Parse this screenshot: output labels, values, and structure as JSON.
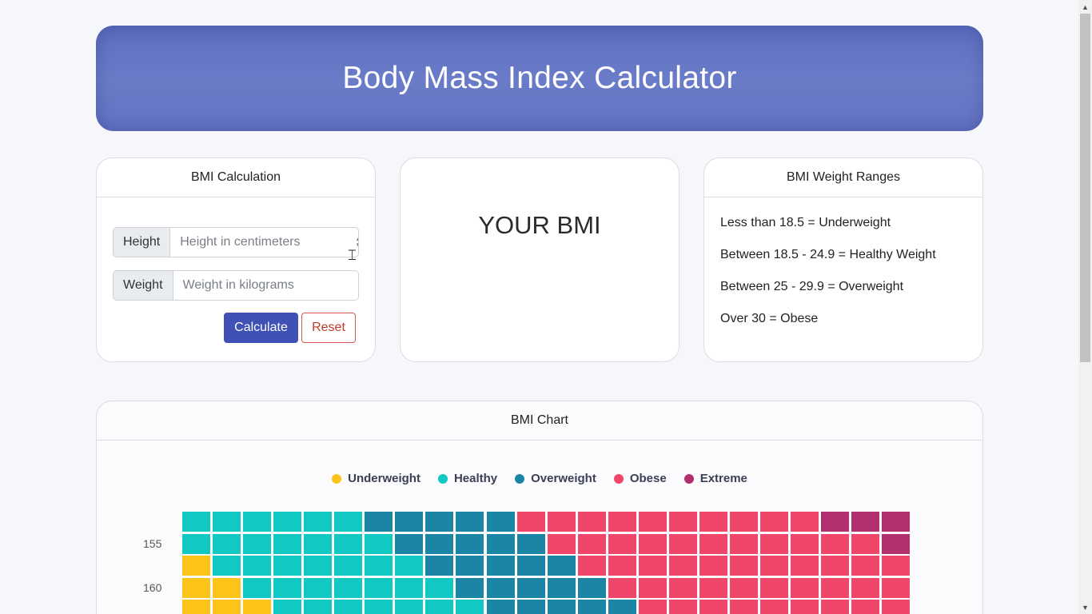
{
  "header": {
    "title": "Body Mass Index Calculator"
  },
  "calculation": {
    "title": "BMI Calculation",
    "height_label": "Height",
    "height_placeholder": "Height in centimeters",
    "height_value": "",
    "weight_label": "Weight",
    "weight_placeholder": "Weight in kilograms",
    "weight_value": "",
    "calculate_label": "Calculate",
    "reset_label": "Reset"
  },
  "result": {
    "title": "YOUR BMI"
  },
  "ranges": {
    "title": "BMI Weight Ranges",
    "items": [
      "Less than 18.5 = Underweight",
      "Between 18.5 - 24.9 = Healthy Weight",
      "Between 25 - 29.9 = Overweight",
      "Over 30 = Obese"
    ]
  },
  "chart_section": {
    "title": "BMI Chart"
  },
  "chart_data": {
    "type": "heatmap",
    "legend": [
      {
        "name": "Underweight",
        "color": "#fcc419"
      },
      {
        "name": "Healthy",
        "color": "#12c8c3"
      },
      {
        "name": "Overweight",
        "color": "#1b85a6"
      },
      {
        "name": "Obese",
        "color": "#f0466a"
      },
      {
        "name": "Extreme",
        "color": "#b3306e"
      }
    ],
    "y_ticks": [
      {
        "label": "155",
        "row": 1
      },
      {
        "label": "160",
        "row": 3
      }
    ],
    "columns": 24,
    "rows": [
      [
        "Healthy",
        "Healthy",
        "Healthy",
        "Healthy",
        "Healthy",
        "Healthy",
        "Overweight",
        "Overweight",
        "Overweight",
        "Overweight",
        "Overweight",
        "Obese",
        "Obese",
        "Obese",
        "Obese",
        "Obese",
        "Obese",
        "Obese",
        "Obese",
        "Obese",
        "Obese",
        "Extreme",
        "Extreme",
        "Extreme"
      ],
      [
        "Healthy",
        "Healthy",
        "Healthy",
        "Healthy",
        "Healthy",
        "Healthy",
        "Healthy",
        "Overweight",
        "Overweight",
        "Overweight",
        "Overweight",
        "Overweight",
        "Obese",
        "Obese",
        "Obese",
        "Obese",
        "Obese",
        "Obese",
        "Obese",
        "Obese",
        "Obese",
        "Obese",
        "Obese",
        "Extreme"
      ],
      [
        "Underweight",
        "Healthy",
        "Healthy",
        "Healthy",
        "Healthy",
        "Healthy",
        "Healthy",
        "Healthy",
        "Overweight",
        "Overweight",
        "Overweight",
        "Overweight",
        "Overweight",
        "Obese",
        "Obese",
        "Obese",
        "Obese",
        "Obese",
        "Obese",
        "Obese",
        "Obese",
        "Obese",
        "Obese",
        "Obese"
      ],
      [
        "Underweight",
        "Underweight",
        "Healthy",
        "Healthy",
        "Healthy",
        "Healthy",
        "Healthy",
        "Healthy",
        "Healthy",
        "Overweight",
        "Overweight",
        "Overweight",
        "Overweight",
        "Overweight",
        "Obese",
        "Obese",
        "Obese",
        "Obese",
        "Obese",
        "Obese",
        "Obese",
        "Obese",
        "Obese",
        "Obese"
      ],
      [
        "Underweight",
        "Underweight",
        "Underweight",
        "Healthy",
        "Healthy",
        "Healthy",
        "Healthy",
        "Healthy",
        "Healthy",
        "Healthy",
        "Overweight",
        "Overweight",
        "Overweight",
        "Overweight",
        "Overweight",
        "Obese",
        "Obese",
        "Obese",
        "Obese",
        "Obese",
        "Obese",
        "Obese",
        "Obese",
        "Obese"
      ]
    ]
  }
}
